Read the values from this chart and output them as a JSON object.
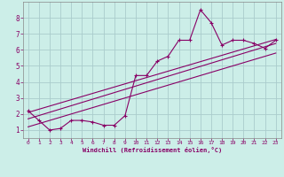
{
  "title": "",
  "xlabel": "Windchill (Refroidissement éolien,°C)",
  "bg_color": "#cceee8",
  "grid_color": "#aacccc",
  "line_color": "#880066",
  "xlim": [
    -0.5,
    23.5
  ],
  "ylim": [
    0.5,
    9.0
  ],
  "xticks": [
    0,
    1,
    2,
    3,
    4,
    5,
    6,
    7,
    8,
    9,
    10,
    11,
    12,
    13,
    14,
    15,
    16,
    17,
    18,
    19,
    20,
    21,
    22,
    23
  ],
  "yticks": [
    1,
    2,
    3,
    4,
    5,
    6,
    7,
    8
  ],
  "scatter_x": [
    0,
    1,
    2,
    3,
    4,
    5,
    6,
    7,
    8,
    9,
    10,
    11,
    12,
    13,
    14,
    15,
    16,
    17,
    18,
    19,
    20,
    21,
    22,
    23
  ],
  "scatter_y": [
    2.2,
    1.6,
    1.0,
    1.1,
    1.6,
    1.6,
    1.5,
    1.3,
    1.3,
    1.9,
    4.4,
    4.4,
    5.3,
    5.6,
    6.6,
    6.6,
    8.5,
    7.7,
    6.3,
    6.6,
    6.6,
    6.4,
    6.1,
    6.6
  ],
  "line1_x": [
    0,
    23
  ],
  "line1_y": [
    1.7,
    6.4
  ],
  "line2_x": [
    0,
    23
  ],
  "line2_y": [
    1.2,
    5.8
  ],
  "line3_x": [
    0,
    23
  ],
  "line3_y": [
    2.1,
    6.65
  ]
}
